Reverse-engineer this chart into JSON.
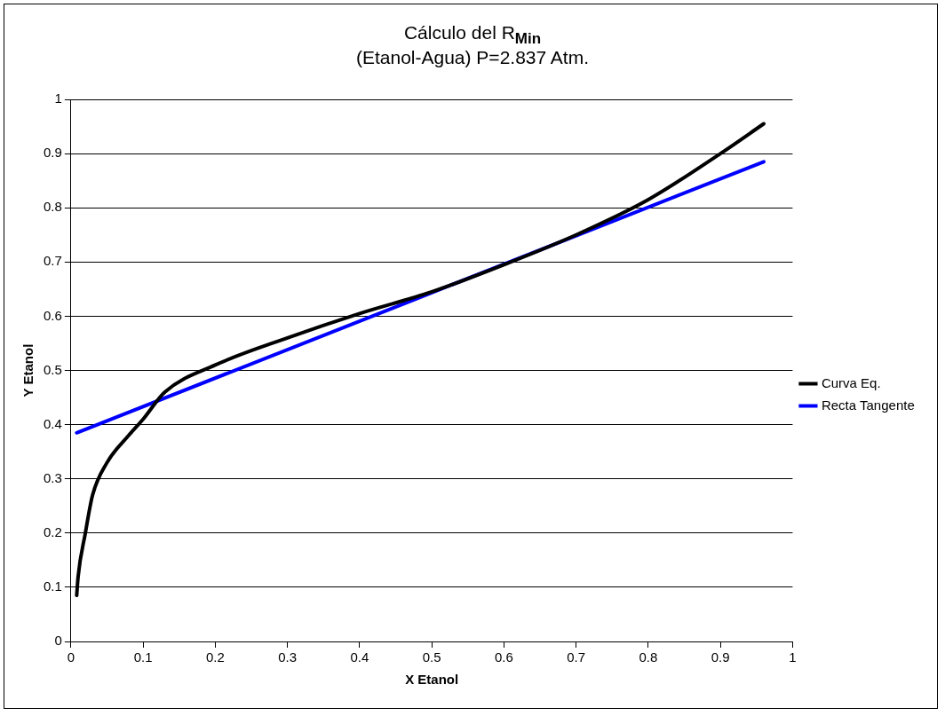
{
  "chart_data": {
    "type": "line",
    "title": "Cálculo del R$_{Min}$",
    "subtitle": "(Etanol-Agua) P=2.837 Atm.",
    "xlabel": "X Etanol",
    "ylabel": "Y Etanol",
    "xlim": [
      0,
      1
    ],
    "xticks": [
      0,
      0.1,
      0.2,
      0.3,
      0.4,
      0.5,
      0.6,
      0.7,
      0.8,
      0.9,
      1
    ],
    "ylim": [
      0,
      1
    ],
    "yticks": [
      0,
      0.1,
      0.2,
      0.3,
      0.4,
      0.5,
      0.6,
      0.7,
      0.8,
      0.9,
      1
    ],
    "grid": "y",
    "legend": "right",
    "marker": "none",
    "line_style": "solid",
    "series": [
      {
        "name": "Curva Eq.",
        "color": "#000000",
        "x": [
          0.008,
          0.01,
          0.02,
          0.03,
          0.05,
          0.08,
          0.1,
          0.13,
          0.2,
          0.3,
          0.4,
          0.5,
          0.6,
          0.7,
          0.8,
          0.9,
          0.96
        ],
        "values": [
          0.085,
          0.12,
          0.2,
          0.27,
          0.33,
          0.38,
          0.41,
          0.46,
          0.51,
          0.56,
          0.605,
          0.645,
          0.695,
          0.75,
          0.815,
          0.9,
          0.955
        ]
      },
      {
        "name": "Recta Tangente",
        "color": "#0000ff",
        "x": [
          0.008,
          0.96
        ],
        "values": [
          0.385,
          0.885
        ]
      }
    ]
  }
}
